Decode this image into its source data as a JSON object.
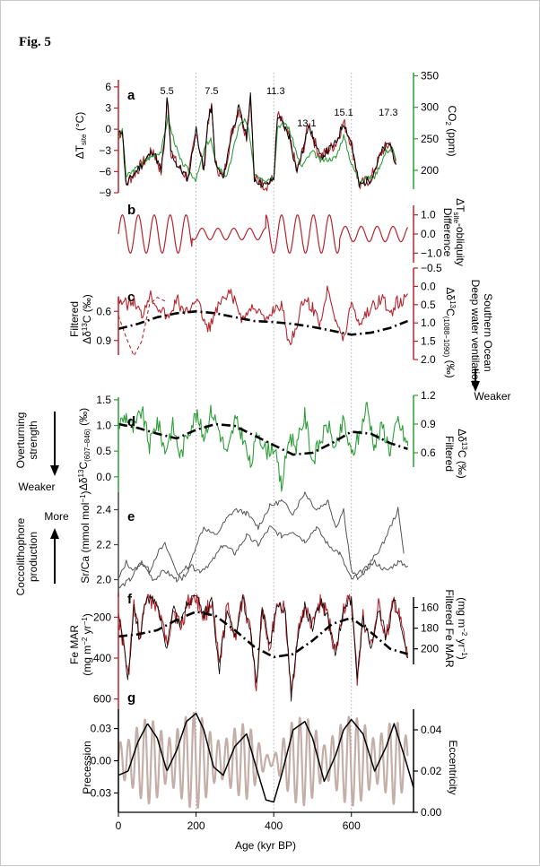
{
  "figure_label": "Fig. 5",
  "x_axis": {
    "label": "Age (kyr BP)",
    "ticks": [
      0,
      200,
      400,
      600
    ],
    "range": [
      0,
      760
    ]
  },
  "colors": {
    "red": "#b8242c",
    "green": "#2e9e3a",
    "black": "#000000",
    "gray": "#555555",
    "tan": "#c4aea8",
    "grid": "#9a9a9a"
  },
  "chart_data": [
    {
      "panel": "a",
      "type": "line",
      "left_axis": {
        "label": "ΔT_site (°C)",
        "ticks": [
          "6",
          "3",
          "0",
          "−3",
          "−6",
          "−9"
        ],
        "range": [
          -9,
          7
        ]
      },
      "right_axis": {
        "label": "CO2 (ppm)",
        "ticks": [
          "350",
          "300",
          "250",
          "200"
        ],
        "range": [
          170,
          355
        ]
      },
      "annotations": [
        "5.5",
        "7.5",
        "11.3",
        "13.1",
        "15.1",
        "17.3"
      ],
      "annotation_ages": [
        125,
        240,
        405,
        485,
        580,
        695
      ],
      "series": [
        {
          "name": "ΔT_site",
          "axis": "left",
          "color": "red",
          "x": [
            0,
            10,
            20,
            30,
            60,
            90,
            110,
            120,
            125,
            128,
            135,
            150,
            180,
            200,
            220,
            230,
            240,
            250,
            270,
            290,
            310,
            330,
            340,
            350,
            380,
            400,
            410,
            420,
            430,
            440,
            460,
            480,
            490,
            500,
            520,
            540,
            560,
            580,
            600,
            620,
            650,
            680,
            700,
            715
          ],
          "values": [
            -1,
            0,
            -8,
            -7,
            -5,
            -3,
            -6,
            -1,
            4,
            3,
            -3,
            -5,
            -7,
            0,
            -6,
            1,
            3,
            -5,
            -7,
            -1,
            3,
            -1,
            5,
            -7,
            -8,
            -7,
            2,
            1,
            0,
            -1,
            -6,
            -2,
            1,
            -1,
            -4,
            -3,
            -2,
            1,
            -2,
            -8,
            -7,
            -3,
            -2,
            -5
          ]
        },
        {
          "name": "CO2",
          "axis": "right",
          "color": "green",
          "x": [
            0,
            10,
            20,
            40,
            80,
            110,
            128,
            135,
            160,
            200,
            225,
            238,
            250,
            280,
            310,
            325,
            335,
            350,
            380,
            400,
            410,
            430,
            440,
            470,
            500,
            520,
            560,
            580,
            600,
            620,
            660,
            690,
            705,
            715
          ],
          "values": [
            250,
            265,
            190,
            200,
            220,
            230,
            285,
            265,
            215,
            185,
            240,
            250,
            210,
            190,
            270,
            280,
            265,
            195,
            185,
            190,
            270,
            275,
            265,
            205,
            230,
            215,
            220,
            255,
            210,
            185,
            190,
            230,
            235,
            215
          ]
        }
      ]
    },
    {
      "panel": "b",
      "type": "line",
      "right_axis": {
        "label": "Difference ΔT_site-obliquity",
        "ticks": [
          "1.0",
          "0.0",
          "−1.0"
        ],
        "range": [
          -1.5,
          1.5
        ]
      },
      "series": [
        {
          "name": "Difference ΔT_site − obliquity",
          "color": "red",
          "period_kyr": 41,
          "amplitudes": [
            1.0,
            0.3,
            1.0,
            0.4
          ]
        }
      ]
    },
    {
      "panel": "c",
      "type": "line",
      "left_axis": {
        "label": "Filtered Δδ13C (‰)",
        "ticks": [
          "0.6",
          "0.9"
        ],
        "range": [
          0.45,
          1.05
        ]
      },
      "right_axis": {
        "label": "Δδ13C(1088−1090) (‰)",
        "ticks": [
          "−0.5",
          "0.0",
          "0.5",
          "1.0",
          "1.5",
          "2.0"
        ],
        "range": [
          -0.5,
          2.0
        ]
      },
      "side_label": [
        "Southern Ocean",
        "Deep water ventilation",
        "Weaker"
      ],
      "series": [
        {
          "name": "Δδ13C(1088−1090)",
          "axis": "right",
          "color": "red",
          "x": [
            0,
            20,
            40,
            60,
            80,
            100,
            130,
            150,
            170,
            200,
            230,
            260,
            290,
            320,
            350,
            380,
            400,
            420,
            440,
            460,
            480,
            500,
            520,
            540,
            560,
            580,
            600,
            620,
            650,
            680,
            700,
            715,
            730,
            745
          ],
          "values": [
            0.3,
            0.5,
            0.4,
            0.8,
            0.2,
            0.5,
            0.9,
            0.3,
            0.8,
            0.3,
            1.2,
            0.5,
            0.2,
            0.9,
            0.5,
            1.0,
            0.6,
            0.5,
            1.6,
            1.0,
            0.3,
            0.6,
            1.0,
            0.0,
            0.9,
            1.5,
            0.4,
            1.0,
            0.6,
            0.3,
            0.8,
            0.4,
            0.5,
            0.2
          ]
        },
        {
          "name": "Δδ13C (dashed)",
          "axis": "right",
          "color": "red",
          "style": "dashed",
          "x": [
            0,
            20,
            40,
            60,
            80,
            100,
            120
          ],
          "values": [
            0.8,
            1.4,
            1.9,
            1.5,
            0.5,
            0.3,
            0.4
          ]
        },
        {
          "name": "Filtered Δδ13C",
          "axis": "left",
          "color": "black",
          "style": "dash-dot",
          "x": [
            0,
            50,
            100,
            150,
            200,
            250,
            300,
            350,
            400,
            450,
            500,
            550,
            600,
            650,
            700,
            745
          ],
          "values": [
            0.78,
            0.73,
            0.66,
            0.62,
            0.6,
            0.62,
            0.66,
            0.7,
            0.71,
            0.73,
            0.76,
            0.8,
            0.84,
            0.82,
            0.77,
            0.7
          ]
        }
      ]
    },
    {
      "panel": "d",
      "type": "line",
      "left_axis": {
        "label": "Δδ13C(607−846) (‰)",
        "ticks": [
          "1.5",
          "1.0",
          "0.5",
          "0.0"
        ],
        "range": [
          -0.3,
          1.55
        ]
      },
      "right_axis": {
        "label": "Filtered Δδ13C (‰)",
        "ticks": [
          "1.2",
          "0.9",
          "0.6"
        ],
        "range": [
          0.45,
          1.2
        ]
      },
      "side_label": [
        "Overturning",
        "strength",
        "Weaker"
      ],
      "series": [
        {
          "name": "Δδ13C(607−846)",
          "axis": "left",
          "color": "green",
          "x": [
            0,
            20,
            40,
            60,
            80,
            100,
            120,
            140,
            160,
            180,
            200,
            220,
            240,
            260,
            280,
            300,
            320,
            340,
            360,
            380,
            400,
            420,
            440,
            460,
            480,
            500,
            520,
            540,
            560,
            580,
            600,
            620,
            640,
            660,
            680,
            700,
            720,
            745
          ],
          "values": [
            1.0,
            1.2,
            0.9,
            1.3,
            0.6,
            1.1,
            0.5,
            1.0,
            0.4,
            0.9,
            1.2,
            0.8,
            1.3,
            0.9,
            0.4,
            1.1,
            0.8,
            0.2,
            0.9,
            0.5,
            0.6,
            -0.2,
            0.8,
            0.6,
            1.2,
            0.3,
            0.7,
            1.0,
            0.5,
            1.1,
            0.4,
            0.8,
            1.4,
            0.6,
            1.0,
            0.5,
            1.1,
            0.6
          ]
        },
        {
          "name": "Filtered Δδ13C",
          "axis": "right",
          "color": "black",
          "style": "dash-dot",
          "x": [
            0,
            50,
            100,
            150,
            200,
            250,
            300,
            350,
            400,
            450,
            500,
            550,
            600,
            650,
            700,
            745
          ],
          "values": [
            0.9,
            0.86,
            0.8,
            0.75,
            0.84,
            0.9,
            0.88,
            0.78,
            0.68,
            0.58,
            0.6,
            0.7,
            0.82,
            0.8,
            0.7,
            0.64
          ]
        }
      ]
    },
    {
      "panel": "e",
      "type": "line",
      "left_axis": {
        "label": "Sr/Ca (mmol mol−1)",
        "ticks": [
          "2.4",
          "2.2",
          "2.0"
        ],
        "range": [
          1.9,
          2.5
        ]
      },
      "side_label": [
        "More",
        "Coccolithophore",
        "production"
      ],
      "series": [
        {
          "name": "Sr/Ca site A",
          "color": "gray",
          "x": [
            0,
            20,
            40,
            60,
            80,
            100,
            120,
            140,
            160,
            180,
            200,
            220,
            250,
            280,
            300,
            330,
            360,
            390,
            420,
            450,
            480,
            510,
            540,
            560,
            580,
            600,
            620,
            650,
            680,
            700,
            720,
            735
          ],
          "values": [
            2.0,
            2.1,
            2.05,
            2.1,
            2.05,
            2.15,
            2.2,
            2.1,
            2.0,
            2.05,
            2.2,
            2.3,
            2.25,
            2.35,
            2.4,
            2.38,
            2.3,
            2.42,
            2.45,
            2.38,
            2.5,
            2.4,
            2.45,
            2.3,
            2.4,
            2.05,
            2.0,
            2.1,
            2.2,
            2.3,
            2.4,
            2.15
          ]
        },
        {
          "name": "Sr/Ca site B",
          "color": "gray",
          "x": [
            0,
            30,
            60,
            90,
            120,
            150,
            180,
            210,
            240,
            270,
            300,
            330,
            360,
            390,
            420,
            450,
            480,
            510,
            540,
            570,
            600,
            630,
            660,
            690,
            720,
            745
          ],
          "values": [
            1.95,
            2.0,
            2.1,
            2.0,
            2.05,
            2.0,
            2.08,
            2.05,
            2.1,
            2.2,
            2.15,
            2.25,
            2.2,
            2.3,
            2.25,
            2.28,
            2.22,
            2.3,
            2.2,
            2.15,
            2.0,
            2.05,
            2.1,
            2.05,
            2.1,
            2.08
          ]
        }
      ]
    },
    {
      "panel": "f",
      "type": "line",
      "left_axis": {
        "label": "Fe MAR (mg m−2 yr−1)",
        "ticks": [
          "200",
          "400",
          "600"
        ],
        "range": [
          80,
          650
        ]
      },
      "right_axis": {
        "label": "Filtered Fe MAR (mg m−2 yr−1)",
        "ticks": [
          "160",
          "180",
          "200"
        ],
        "range": [
          150,
          215
        ]
      },
      "series": [
        {
          "name": "Fe MAR",
          "axis": "left",
          "color": "red",
          "x": [
            0,
            15,
            25,
            40,
            55,
            70,
            90,
            110,
            125,
            140,
            160,
            180,
            200,
            220,
            240,
            260,
            280,
            300,
            320,
            340,
            355,
            370,
            390,
            410,
            430,
            445,
            460,
            480,
            500,
            520,
            540,
            560,
            580,
            600,
            615,
            630,
            650,
            670,
            690,
            710,
            730,
            745
          ],
          "values": [
            200,
            350,
            500,
            150,
            300,
            120,
            110,
            200,
            350,
            150,
            250,
            120,
            100,
            200,
            120,
            450,
            150,
            300,
            120,
            250,
            550,
            150,
            350,
            120,
            180,
            600,
            300,
            150,
            250,
            120,
            200,
            380,
            150,
            120,
            500,
            200,
            350,
            150,
            300,
            120,
            250,
            400
          ]
        },
        {
          "name": "Filtered Fe MAR",
          "axis": "right",
          "color": "black",
          "style": "dash-dot",
          "x": [
            0,
            50,
            100,
            150,
            200,
            250,
            300,
            350,
            400,
            450,
            500,
            550,
            600,
            650,
            700,
            745
          ],
          "values": [
            188,
            186,
            182,
            172,
            164,
            168,
            182,
            198,
            208,
            205,
            192,
            176,
            170,
            184,
            200,
            205
          ]
        }
      ]
    },
    {
      "panel": "g",
      "type": "line",
      "left_axis": {
        "label": "Precession",
        "ticks": [
          "0.03",
          "0.00",
          "−0.03"
        ],
        "range": [
          -0.048,
          0.048
        ]
      },
      "right_axis": {
        "label": "Eccentricity",
        "ticks": [
          "0.04",
          "0.02",
          "0.00"
        ],
        "range": [
          0.0,
          0.05
        ]
      },
      "series": [
        {
          "name": "Precession",
          "axis": "left",
          "color": "tan",
          "period_kyr": 21
        },
        {
          "name": "Eccentricity",
          "axis": "right",
          "color": "black",
          "x": [
            0,
            25,
            50,
            75,
            100,
            125,
            150,
            175,
            200,
            220,
            245,
            270,
            300,
            330,
            350,
            380,
            400,
            420,
            450,
            480,
            500,
            530,
            560,
            580,
            600,
            630,
            660,
            690,
            710,
            740,
            760
          ],
          "values": [
            0.018,
            0.02,
            0.034,
            0.043,
            0.036,
            0.02,
            0.03,
            0.044,
            0.048,
            0.04,
            0.022,
            0.018,
            0.032,
            0.038,
            0.025,
            0.006,
            0.005,
            0.018,
            0.04,
            0.044,
            0.036,
            0.015,
            0.028,
            0.04,
            0.045,
            0.038,
            0.02,
            0.032,
            0.043,
            0.025,
            0.012
          ]
        }
      ]
    }
  ]
}
